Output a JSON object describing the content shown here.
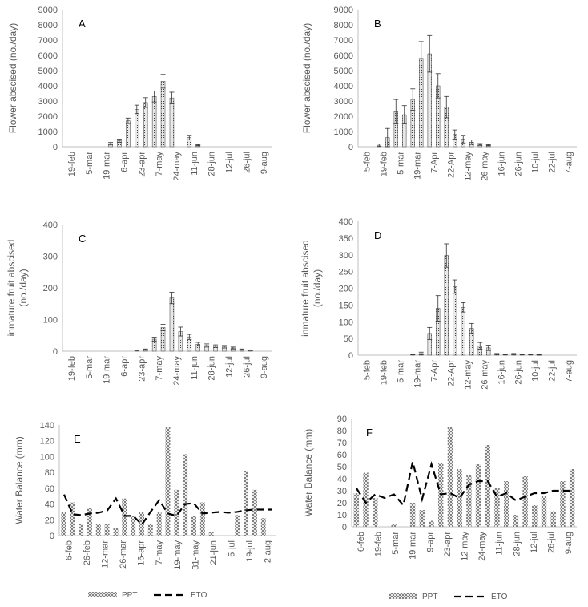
{
  "chart_data": [
    {
      "panel": "A",
      "type": "bar",
      "ylabel": "Flower abscised (no./day)",
      "ylim": [
        0,
        9000
      ],
      "yticks": [
        0,
        1000,
        2000,
        3000,
        4000,
        5000,
        6000,
        7000,
        8000,
        9000
      ],
      "tick_labels": [
        "19-feb",
        "5-mar",
        "19-mar",
        "6-apr",
        "23-apr",
        "7-may",
        "24-may",
        "11-jun",
        "28-jun",
        "12-jul",
        "26-jul",
        "9-aug"
      ],
      "series": [
        {
          "values": [
            0,
            0,
            0,
            0,
            0,
            200,
            400,
            1700,
            2450,
            2900,
            3300,
            4300,
            3200,
            0,
            600,
            100,
            0,
            0,
            0,
            0,
            0,
            0,
            0,
            0
          ],
          "errors": [
            0,
            0,
            0,
            0,
            0,
            80,
            100,
            180,
            280,
            320,
            360,
            450,
            380,
            0,
            150,
            40,
            0,
            0,
            0,
            0,
            0,
            0,
            0,
            0
          ]
        }
      ]
    },
    {
      "panel": "B",
      "type": "bar",
      "ylabel": "Flower abscised (no./day)",
      "ylim": [
        0,
        9000
      ],
      "yticks": [
        0,
        1000,
        2000,
        3000,
        4000,
        5000,
        6000,
        7000,
        8000,
        9000
      ],
      "tick_labels": [
        "5-feb",
        "19-feb",
        "5-mar",
        "19-mar",
        "7-Apr",
        "22-Apr",
        "12-may",
        "26-may",
        "16-jun",
        "26-jun",
        "10-jul",
        "22-jul",
        "7-aug"
      ],
      "series": [
        {
          "values": [
            0,
            0,
            100,
            600,
            2300,
            2100,
            3100,
            5800,
            6100,
            4000,
            2600,
            800,
            500,
            300,
            150,
            100,
            0,
            0,
            0,
            0,
            0,
            0,
            0,
            0,
            0,
            0
          ],
          "errors": [
            0,
            0,
            80,
            600,
            800,
            600,
            700,
            1100,
            1200,
            800,
            700,
            300,
            250,
            150,
            60,
            40,
            0,
            0,
            0,
            0,
            0,
            0,
            0,
            0,
            0,
            0
          ]
        }
      ]
    },
    {
      "panel": "C",
      "type": "bar",
      "ylabel": "inmature fruit abscised (no./day)",
      "ylim": [
        0,
        400
      ],
      "yticks": [
        0,
        100,
        200,
        300,
        400
      ],
      "tick_labels": [
        "19-feb",
        "5-mar",
        "19-mar",
        "6-apr",
        "23-apr",
        "7-may",
        "24-may",
        "11-jun",
        "28-jun",
        "12-jul",
        "26-jul",
        "9-aug"
      ],
      "series": [
        {
          "values": [
            0,
            0,
            0,
            0,
            0,
            0,
            0,
            0,
            3,
            5,
            38,
            75,
            168,
            62,
            45,
            22,
            18,
            16,
            14,
            10,
            5,
            3,
            0,
            0
          ],
          "errors": [
            0,
            0,
            0,
            0,
            0,
            0,
            0,
            0,
            1,
            2,
            6,
            10,
            18,
            14,
            8,
            6,
            5,
            4,
            4,
            3,
            2,
            1,
            0,
            0
          ]
        }
      ]
    },
    {
      "panel": "D",
      "type": "bar",
      "ylabel": "inmature fruit abscised (no./day)",
      "ylim": [
        0,
        400
      ],
      "yticks": [
        0,
        50,
        100,
        150,
        200,
        250,
        300,
        350,
        400
      ],
      "tick_labels": [
        "5-feb",
        "19-feb",
        "5-mar",
        "19-mar",
        "7-Apr",
        "22-Apr",
        "12-may",
        "26-may",
        "16-jun",
        "26-jun",
        "10-jul",
        "22-jul",
        "7-aug"
      ],
      "series": [
        {
          "values": [
            0,
            0,
            0,
            0,
            0,
            0,
            2,
            5,
            65,
            140,
            298,
            205,
            143,
            80,
            28,
            22,
            3,
            2,
            3,
            2,
            2,
            1,
            0,
            0,
            0,
            0
          ],
          "errors": [
            0,
            0,
            0,
            0,
            0,
            0,
            1,
            4,
            18,
            38,
            35,
            20,
            14,
            15,
            10,
            8,
            2,
            1,
            2,
            1,
            1,
            1,
            0,
            0,
            0,
            0
          ]
        }
      ]
    },
    {
      "panel": "E",
      "type": "bar+line",
      "ylabel": "Water Balance (mm)",
      "ylim": [
        0,
        140
      ],
      "yticks": [
        0,
        20,
        40,
        60,
        80,
        100,
        120,
        140
      ],
      "tick_labels": [
        "6-feb",
        "26-feb",
        "12-mar",
        "26-mar",
        "16-apr",
        "7-may",
        "19-may",
        "31-may",
        "21-jun",
        "5-jul",
        "19-jul",
        "2-aug"
      ],
      "series": [
        {
          "name": "PPT",
          "values": [
            30,
            42,
            15,
            35,
            15,
            15,
            10,
            47,
            25,
            30,
            15,
            30,
            137,
            58,
            103,
            25,
            42,
            5,
            0,
            0,
            26,
            82,
            58,
            22,
            0
          ]
        },
        {
          "name": "ETO",
          "values": [
            52,
            27,
            26,
            28,
            29,
            32,
            47,
            25,
            25,
            14,
            30,
            45,
            28,
            25,
            40,
            41,
            28,
            29,
            30,
            29,
            30,
            32,
            33,
            33,
            33
          ]
        }
      ],
      "legend": [
        "PPT",
        "ETO"
      ]
    },
    {
      "panel": "F",
      "type": "bar+line",
      "ylabel": "Water Balance (mm)",
      "ylim": [
        0,
        90
      ],
      "yticks": [
        0,
        10,
        20,
        30,
        40,
        50,
        60,
        70,
        80,
        90
      ],
      "tick_labels": [
        "6-feb",
        "19-feb",
        "5-mar",
        "19-mar",
        "9-apr",
        "23-apr",
        "12-may",
        "24-may",
        "11-jun",
        "28-jun",
        "12-jul",
        "26-jul",
        "9-aug"
      ],
      "series": [
        {
          "name": "PPT",
          "values": [
            28,
            45,
            24,
            0,
            2,
            0,
            20,
            14,
            5,
            53,
            83,
            48,
            43,
            52,
            68,
            32,
            38,
            10,
            42,
            18,
            26,
            13,
            38,
            48
          ]
        },
        {
          "name": "ETO",
          "values": [
            32,
            20,
            27,
            24,
            27,
            18,
            54,
            23,
            52,
            27,
            28,
            24,
            35,
            38,
            38,
            25,
            28,
            22,
            25,
            28,
            28,
            30,
            30,
            30
          ]
        }
      ],
      "legend": [
        "PPT",
        "ETO"
      ]
    }
  ]
}
